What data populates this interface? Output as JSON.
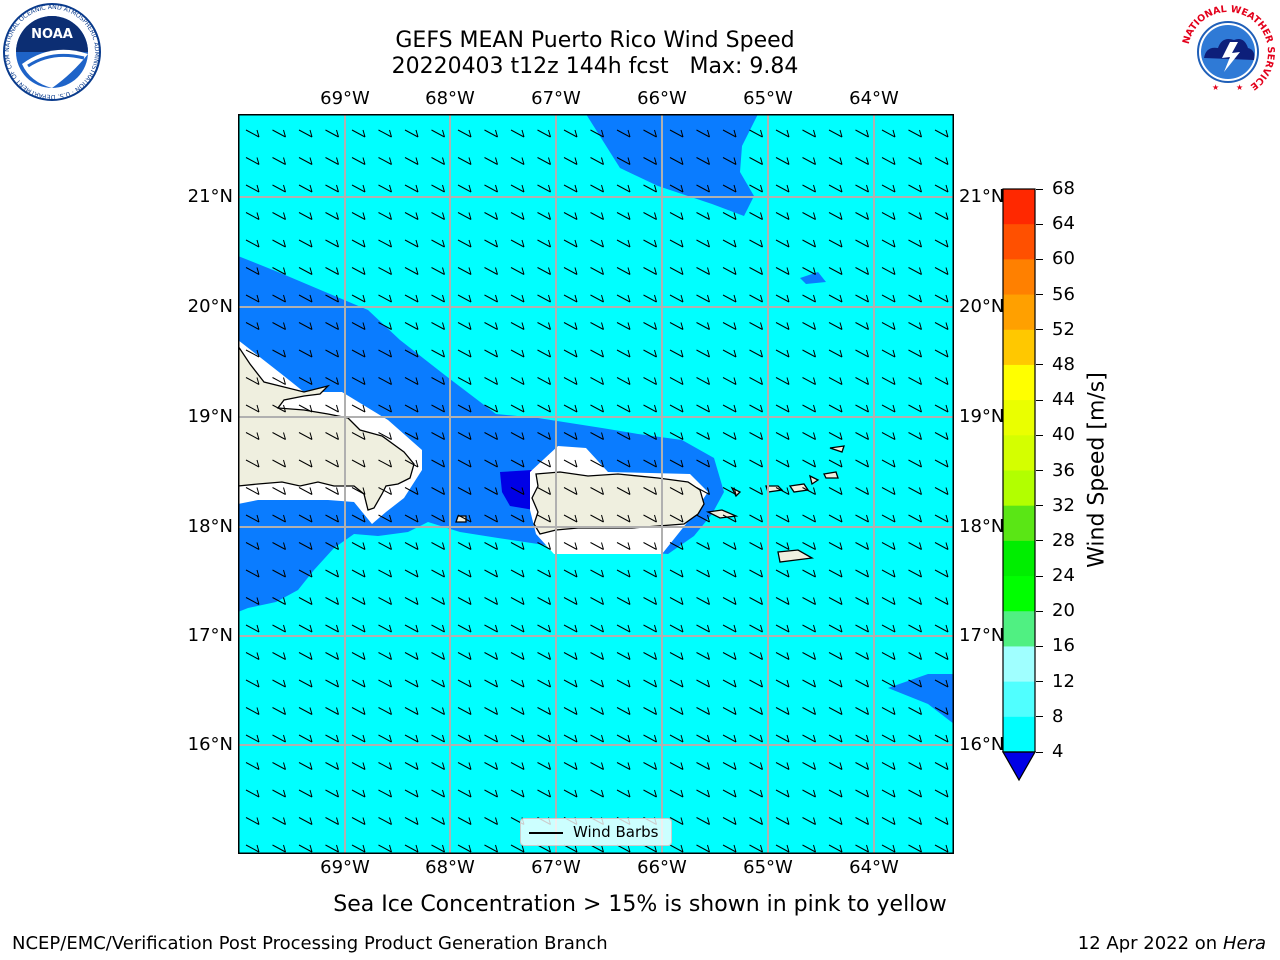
{
  "header": {
    "title_line1": "GEFS MEAN Puerto Rico Wind Speed",
    "title_line2": "20220403 t12z 144h fcst   Max: 9.84"
  },
  "logos": {
    "noaa_text": "NOAA",
    "noaa_ring_text": "NATIONAL OCEANIC AND ATMOSPHERIC ADMINISTRATION · U.S. DEPARTMENT OF COMMERCE",
    "nws_ring_text": "NATIONAL WEATHER SERVICE"
  },
  "map": {
    "lon_labels": [
      "69°W",
      "68°W",
      "67°W",
      "66°W",
      "65°W",
      "64°W"
    ],
    "lat_labels": [
      "21°N",
      "20°N",
      "19°N",
      "18°N",
      "17°N",
      "16°N"
    ],
    "legend_label": "Wind Barbs",
    "colors": {
      "sea_dark": "#0a7cff",
      "sea_light": "#00ffff",
      "land": "#efefdf",
      "core": "#0000e6"
    }
  },
  "colorbar": {
    "label": "Wind Speed [m/s]",
    "ticks": [
      "68",
      "64",
      "60",
      "56",
      "52",
      "48",
      "44",
      "40",
      "36",
      "32",
      "28",
      "24",
      "20",
      "16",
      "12",
      "8",
      "4"
    ],
    "colors": [
      "#ff0000",
      "#ff2800",
      "#ff5000",
      "#ff8000",
      "#ffa000",
      "#ffc800",
      "#ffff00",
      "#eaff00",
      "#d4ff00",
      "#b2ff00",
      "#5ae615",
      "#00ee00",
      "#00ff00",
      "#50f082",
      "#a0ffff",
      "#50ffff",
      "#00ffff",
      "#0a7cff"
    ]
  },
  "footer": {
    "subtitle": "Sea Ice Concentration > 15% is shown in pink to yellow",
    "credit": "NCEP/EMC/Verification Post Processing Product Generation Branch",
    "date": "12 Apr 2022 on",
    "machine": "Hera"
  }
}
